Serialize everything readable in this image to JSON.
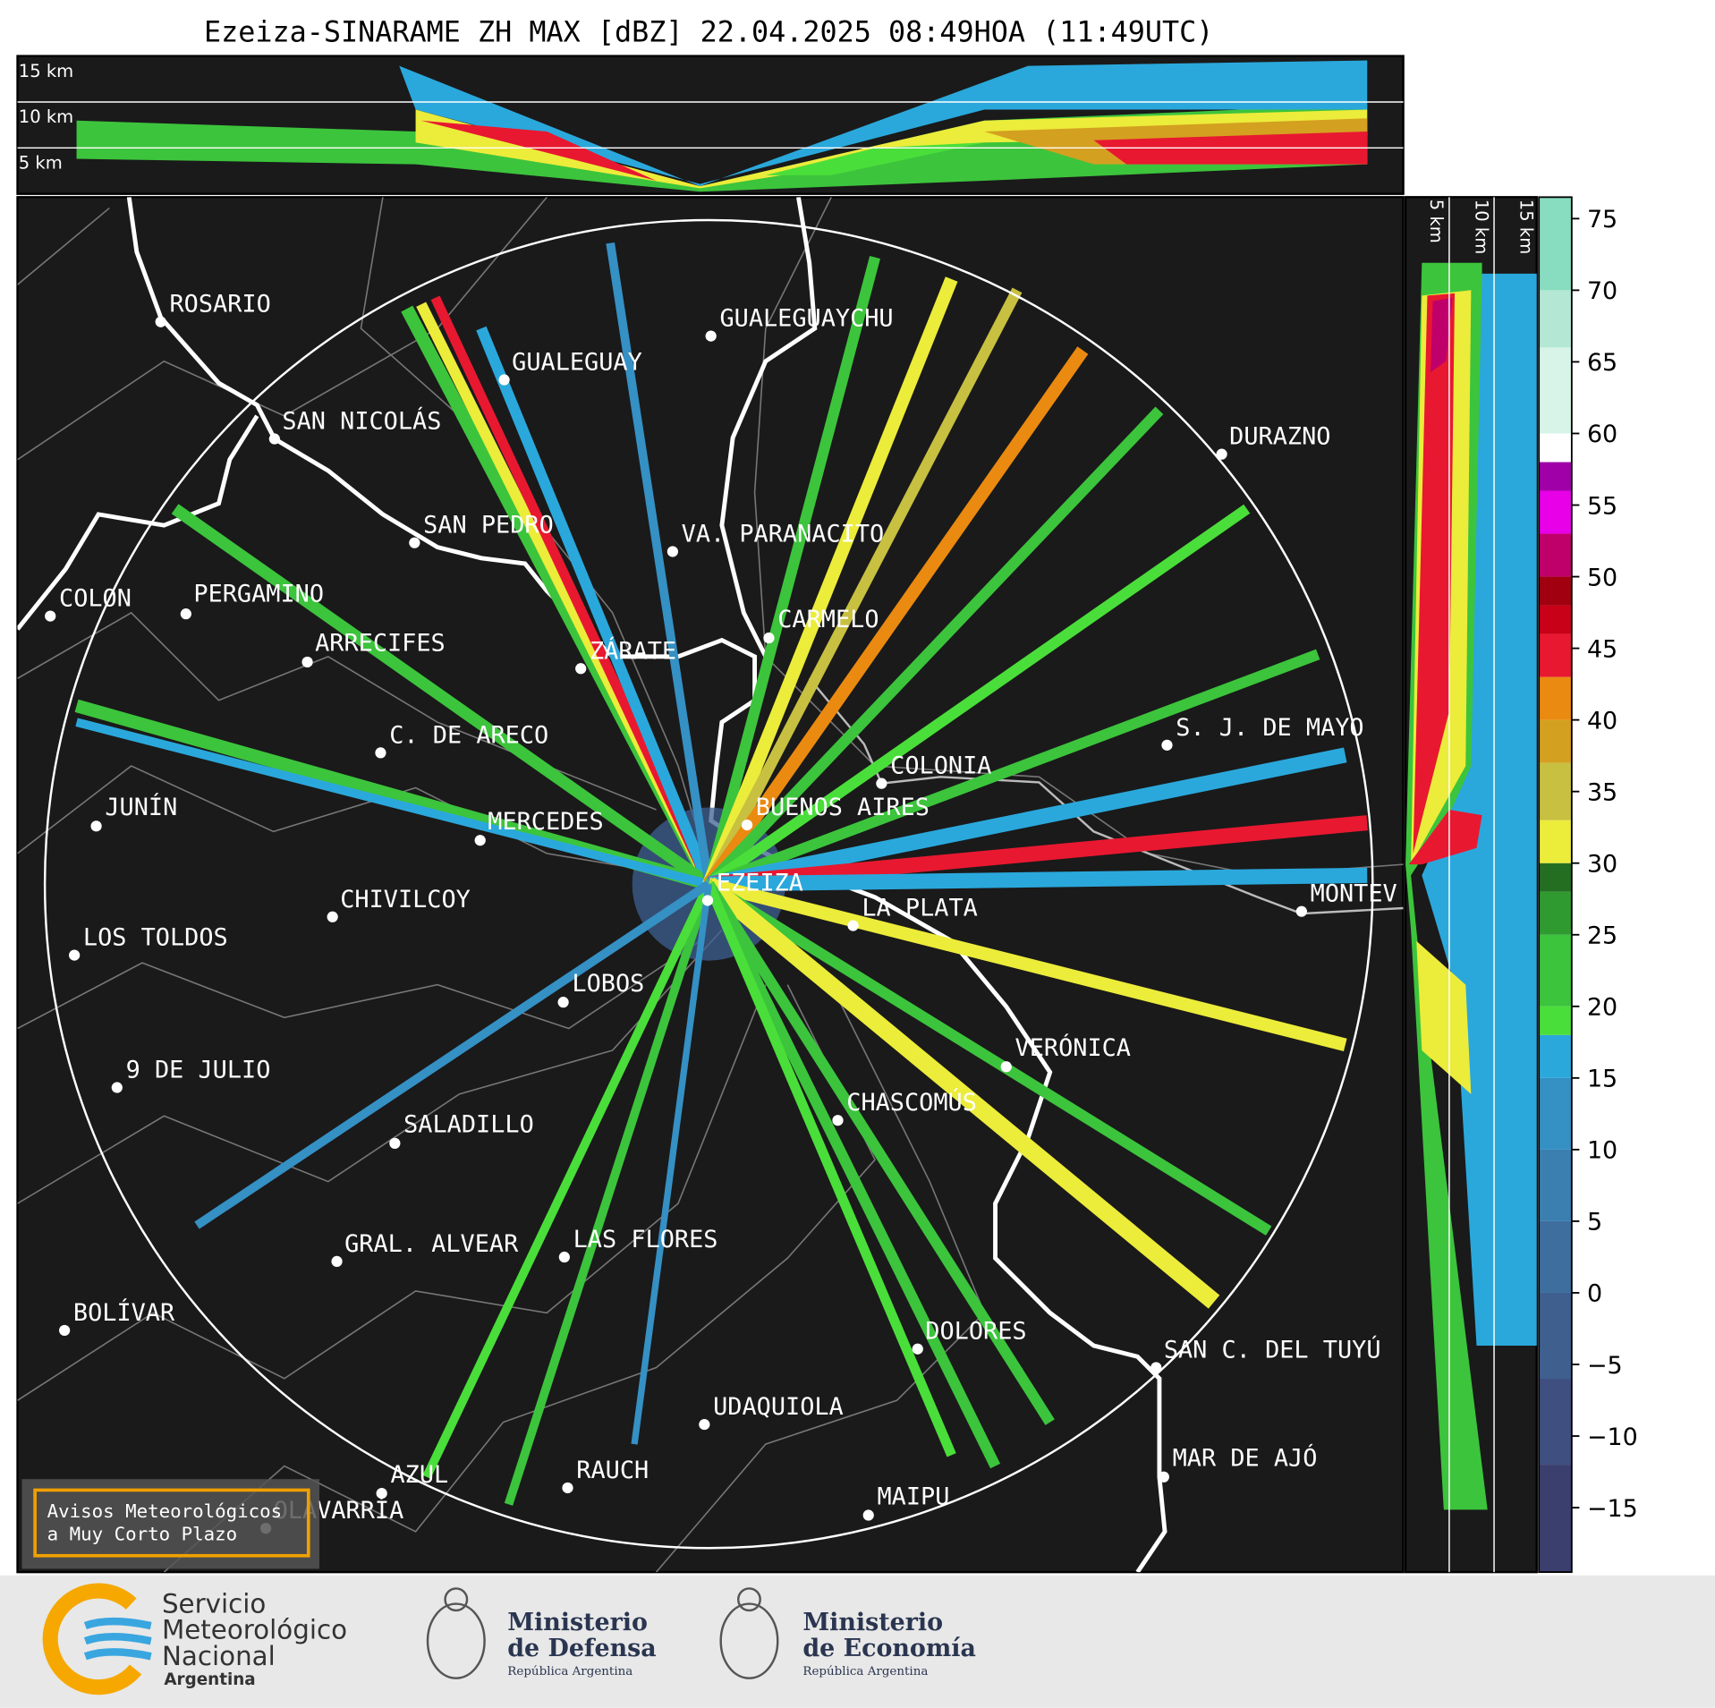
{
  "header": {
    "title": "Ezeiza-SINARAME ZH MAX [dBZ] 22.04.2025 08:49HOA (11:49UTC)"
  },
  "top_panel": {
    "labels": [
      "15 km",
      "10 km",
      "5 km"
    ]
  },
  "side_panel": {
    "labels": [
      "5 km",
      "10 km",
      "15 km"
    ]
  },
  "cities": [
    "ROSARIO",
    "GUALEGUAYCHU",
    "GUALEGUAY",
    "SAN NICOLÁS",
    "DURAZNO",
    "SAN PEDRO",
    "VA. PARANACITO",
    "COLON",
    "PERGAMINO",
    "CARMELO",
    "ARRECIFES",
    "ZÁRATE",
    "S. J. DE MAYO",
    "C. DE ARECO",
    "COLONIA",
    "BUENOS AIRES",
    "JUNÍN",
    "MERCEDES",
    "EZEIZA",
    "MONTEV",
    "CHIVILCOY",
    "LA PLATA",
    "LOS TOLDOS",
    "LOBOS",
    "VERÓNICA",
    "9 DE JULIO",
    "CHASCOMÚS",
    "SALADILLO",
    "GRAL. ALVEAR",
    "LAS FLORES",
    "BOLÍVAR",
    "DOLORES",
    "SAN C. DEL TUYÚ",
    "UDAQUIOLA",
    "MAR DE AJÓ",
    "AZUL",
    "RAUCH",
    "MAIPU",
    "OLAVARRÍA"
  ],
  "notice": [
    "Avisos Meteorológicos",
    "a Muy Corto Plazo"
  ],
  "colorbar": {
    "lim": [
      -19.5,
      76.5
    ],
    "ticks": [
      {
        "value": -15,
        "label": "−15"
      },
      {
        "value": -10,
        "label": "−10"
      },
      {
        "value": -5,
        "label": "−5"
      },
      0,
      5,
      10,
      15,
      20,
      25,
      30,
      35,
      40,
      45,
      50,
      55,
      60,
      65,
      70,
      75
    ],
    "bands": [
      {
        "from": -19.5,
        "to": -12,
        "color": "#3b3f6e"
      },
      {
        "from": -12,
        "to": -6,
        "color": "#3f4f7f"
      },
      {
        "from": -6,
        "to": 0,
        "color": "#3f5f8f"
      },
      {
        "from": 0,
        "to": 5,
        "color": "#3e6e9e"
      },
      {
        "from": 5,
        "to": 10,
        "color": "#3a7fb0"
      },
      {
        "from": 10,
        "to": 15,
        "color": "#3590c4"
      },
      {
        "from": 15,
        "to": 18,
        "color": "#2aa8dc"
      },
      {
        "from": 18,
        "to": 20,
        "color": "#4ade3a"
      },
      {
        "from": 20,
        "to": 25,
        "color": "#3cc43c"
      },
      {
        "from": 25,
        "to": 28,
        "color": "#2f9a30"
      },
      {
        "from": 28,
        "to": 30,
        "color": "#246e22"
      },
      {
        "from": 30,
        "to": 33,
        "color": "#ecec3a"
      },
      {
        "from": 33,
        "to": 37,
        "color": "#c8c040"
      },
      {
        "from": 37,
        "to": 40,
        "color": "#d4a020"
      },
      {
        "from": 40,
        "to": 43,
        "color": "#ea8a10"
      },
      {
        "from": 43,
        "to": 46,
        "color": "#e81830"
      },
      {
        "from": 46,
        "to": 48,
        "color": "#c80018"
      },
      {
        "from": 48,
        "to": 50,
        "color": "#a00010"
      },
      {
        "from": 50,
        "to": 53,
        "color": "#c0006a"
      },
      {
        "from": 53,
        "to": 56,
        "color": "#e800e8"
      },
      {
        "from": 56,
        "to": 58,
        "color": "#a000a8"
      },
      {
        "from": 58,
        "to": 60,
        "color": "#ffffff"
      },
      {
        "from": 60,
        "to": 66,
        "color": "#d8f4e8"
      },
      {
        "from": 66,
        "to": 70,
        "color": "#b4e8d4"
      },
      {
        "from": 70,
        "to": 76.5,
        "color": "#88dcc0"
      }
    ]
  },
  "footer": {
    "smn": [
      "Servicio",
      "Meteorológico",
      "Nacional",
      "Argentina"
    ],
    "defensa": [
      "Ministerio",
      "de Defensa",
      "República Argentina"
    ],
    "economia": [
      "Ministerio",
      "de Economía",
      "República Argentina"
    ]
  }
}
